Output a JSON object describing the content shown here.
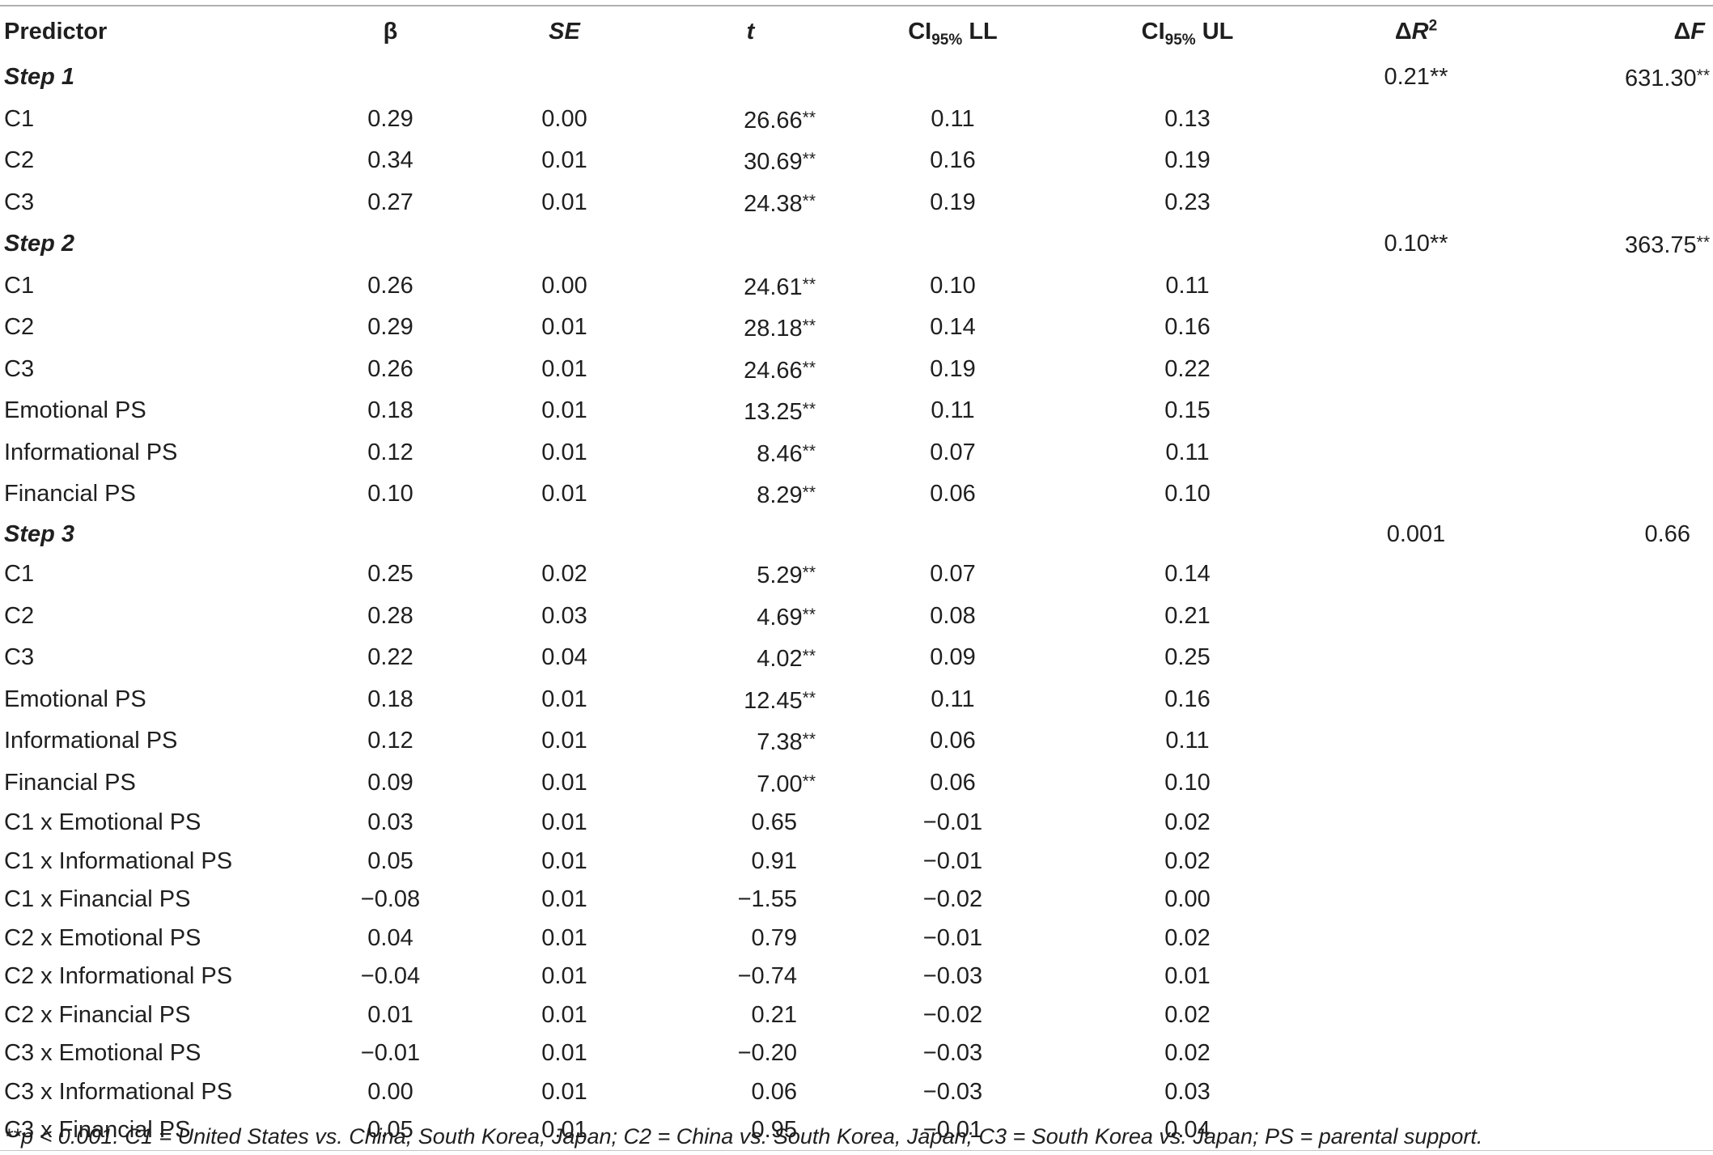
{
  "columns": {
    "predictor": "Predictor",
    "beta": "β",
    "se": "SE",
    "t": "t",
    "ci_ll_pre": "CI",
    "ci_ll_sub": "95%",
    "ci_ll_post": " LL",
    "ci_ul_pre": "CI",
    "ci_ul_sub": "95%",
    "ci_ul_post": " UL",
    "dr2_delta": "Δ",
    "dr2_var": "R",
    "dr2_sup": "2",
    "df_delta": "Δ",
    "df_var": "F"
  },
  "rows": [
    {
      "type": "step",
      "label": "Step 1",
      "dr2": "0.21",
      "dr2_stars": "**",
      "df": "631.30",
      "df_stars": "**"
    },
    {
      "type": "data",
      "predictor": "C1",
      "beta": "0.29",
      "se": "0.00",
      "t": "26.66",
      "t_stars": "**",
      "ll": "0.11",
      "ul": "0.13"
    },
    {
      "type": "data",
      "predictor": "C2",
      "beta": "0.34",
      "se": "0.01",
      "t": "30.69",
      "t_stars": "**",
      "ll": "0.16",
      "ul": "0.19"
    },
    {
      "type": "data",
      "predictor": "C3",
      "beta": "0.27",
      "se": "0.01",
      "t": "24.38",
      "t_stars": "**",
      "ll": "0.19",
      "ul": "0.23"
    },
    {
      "type": "step",
      "label": "Step 2",
      "dr2": "0.10",
      "dr2_stars": "**",
      "df": "363.75",
      "df_stars": "**"
    },
    {
      "type": "data",
      "predictor": "C1",
      "beta": "0.26",
      "se": "0.00",
      "t": "24.61",
      "t_stars": "**",
      "ll": "0.10",
      "ul": "0.11"
    },
    {
      "type": "data",
      "predictor": "C2",
      "beta": "0.29",
      "se": "0.01",
      "t": "28.18",
      "t_stars": "**",
      "ll": "0.14",
      "ul": "0.16"
    },
    {
      "type": "data",
      "predictor": "C3",
      "beta": "0.26",
      "se": "0.01",
      "t": "24.66",
      "t_stars": "**",
      "ll": "0.19",
      "ul": "0.22"
    },
    {
      "type": "data",
      "predictor": "Emotional PS",
      "beta": "0.18",
      "se": "0.01",
      "t": "13.25",
      "t_stars": "**",
      "ll": "0.11",
      "ul": "0.15"
    },
    {
      "type": "data",
      "predictor": "Informational PS",
      "beta": "0.12",
      "se": "0.01",
      "t": "8.46",
      "t_stars": "**",
      "ll": "0.07",
      "ul": "0.11"
    },
    {
      "type": "data",
      "predictor": "Financial PS",
      "beta": "0.10",
      "se": "0.01",
      "t": "8.29",
      "t_stars": "**",
      "ll": "0.06",
      "ul": "0.10"
    },
    {
      "type": "step",
      "label": "Step 3",
      "dr2": "0.001",
      "dr2_stars": "",
      "df": "0.66",
      "df_stars": ""
    },
    {
      "type": "data",
      "predictor": "C1",
      "beta": "0.25",
      "se": "0.02",
      "t": "5.29",
      "t_stars": "**",
      "ll": "0.07",
      "ul": "0.14"
    },
    {
      "type": "data",
      "predictor": "C2",
      "beta": "0.28",
      "se": "0.03",
      "t": "4.69",
      "t_stars": "**",
      "ll": "0.08",
      "ul": "0.21"
    },
    {
      "type": "data",
      "predictor": "C3",
      "beta": "0.22",
      "se": "0.04",
      "t": "4.02",
      "t_stars": "**",
      "ll": "0.09",
      "ul": "0.25"
    },
    {
      "type": "data",
      "predictor": "Emotional PS",
      "beta": "0.18",
      "se": "0.01",
      "t": "12.45",
      "t_stars": "**",
      "ll": "0.11",
      "ul": "0.16"
    },
    {
      "type": "data",
      "predictor": "Informational PS",
      "beta": "0.12",
      "se": "0.01",
      "t": "7.38",
      "t_stars": "**",
      "ll": "0.06",
      "ul": "0.11"
    },
    {
      "type": "data",
      "predictor": "Financial PS",
      "beta": "0.09",
      "se": "0.01",
      "t": "7.00",
      "t_stars": "**",
      "ll": "0.06",
      "ul": "0.10"
    },
    {
      "type": "data",
      "predictor": "C1 x Emotional PS",
      "beta": "0.03",
      "se": "0.01",
      "t": "0.65",
      "t_stars": "",
      "ll": "−0.01",
      "ul": "0.02"
    },
    {
      "type": "data",
      "predictor": "C1 x Informational PS",
      "beta": "0.05",
      "se": "0.01",
      "t": "0.91",
      "t_stars": "",
      "ll": "−0.01",
      "ul": "0.02"
    },
    {
      "type": "data",
      "predictor": "C1 x Financial PS",
      "beta": "−0.08",
      "se": "0.01",
      "t": "−1.55",
      "t_stars": "",
      "ll": "−0.02",
      "ul": "0.00"
    },
    {
      "type": "data",
      "predictor": "C2 x Emotional PS",
      "beta": "0.04",
      "se": "0.01",
      "t": "0.79",
      "t_stars": "",
      "ll": "−0.01",
      "ul": "0.02"
    },
    {
      "type": "data",
      "predictor": "C2 x Informational PS",
      "beta": "−0.04",
      "se": "0.01",
      "t": "−0.74",
      "t_stars": "",
      "ll": "−0.03",
      "ul": "0.01"
    },
    {
      "type": "data",
      "predictor": "C2 x Financial PS",
      "beta": "0.01",
      "se": "0.01",
      "t": "0.21",
      "t_stars": "",
      "ll": "−0.02",
      "ul": "0.02"
    },
    {
      "type": "data",
      "predictor": "C3 x Emotional PS",
      "beta": "−0.01",
      "se": "0.01",
      "t": "−0.20",
      "t_stars": "",
      "ll": "−0.03",
      "ul": "0.02"
    },
    {
      "type": "data",
      "predictor": "C3 x Informational PS",
      "beta": "0.00",
      "se": "0.01",
      "t": "0.06",
      "t_stars": "",
      "ll": "−0.03",
      "ul": "0.03"
    },
    {
      "type": "data",
      "predictor": "C3 x Financial PS",
      "beta": "0.05",
      "se": "0.01",
      "t": "0.95",
      "t_stars": "",
      "ll": "−0.01",
      "ul": "0.04"
    }
  ],
  "footnote": "**p < 0.001. C1 = United States vs. China, South Korea, Japan; C2 = China vs. South Korea, Japan; C3 = South Korea vs. Japan; PS = parental support."
}
